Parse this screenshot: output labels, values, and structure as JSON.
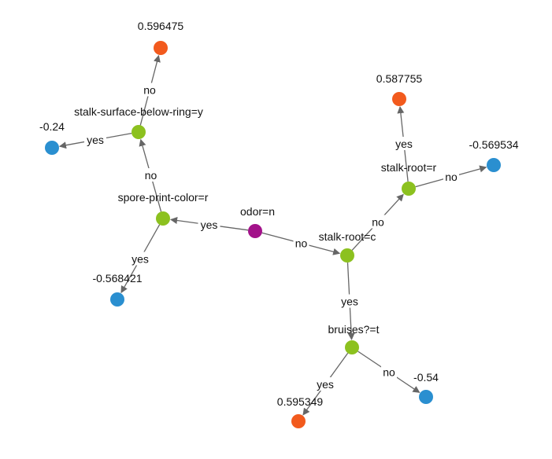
{
  "diagram": {
    "colors": {
      "root": "#a3128a",
      "split": "#8cc11f",
      "leaf_positive": "#f25a1d",
      "leaf_negative": "#2a8fd0",
      "edge": "#666666"
    },
    "nodes": [
      {
        "id": "odor",
        "label": "odor=n",
        "kind": "root"
      },
      {
        "id": "spore",
        "label": "spore-print-color=r",
        "kind": "split"
      },
      {
        "id": "ssbr",
        "label": "stalk-surface-below-ring=y",
        "kind": "split"
      },
      {
        "id": "leaf_596475",
        "label": "0.596475",
        "kind": "leaf_positive"
      },
      {
        "id": "leaf_m024",
        "label": "-0.24",
        "kind": "leaf_negative"
      },
      {
        "id": "leaf_m568421",
        "label": "-0.568421",
        "kind": "leaf_negative"
      },
      {
        "id": "stalkc",
        "label": "stalk-root=c",
        "kind": "split"
      },
      {
        "id": "stalkr",
        "label": "stalk-root=r",
        "kind": "split"
      },
      {
        "id": "leaf_587755",
        "label": "0.587755",
        "kind": "leaf_positive"
      },
      {
        "id": "leaf_m569534",
        "label": "-0.569534",
        "kind": "leaf_negative"
      },
      {
        "id": "bruises",
        "label": "bruises?=t",
        "kind": "split"
      },
      {
        "id": "leaf_595349",
        "label": "0.595349",
        "kind": "leaf_positive"
      },
      {
        "id": "leaf_m054",
        "label": "-0.54",
        "kind": "leaf_negative"
      }
    ],
    "edges": [
      {
        "from": "odor",
        "to": "spore",
        "label": "yes"
      },
      {
        "from": "odor",
        "to": "stalkc",
        "label": "no"
      },
      {
        "from": "spore",
        "to": "ssbr",
        "label": "no"
      },
      {
        "from": "spore",
        "to": "leaf_m568421",
        "label": "yes"
      },
      {
        "from": "ssbr",
        "to": "leaf_596475",
        "label": "no"
      },
      {
        "from": "ssbr",
        "to": "leaf_m024",
        "label": "yes"
      },
      {
        "from": "stalkc",
        "to": "stalkr",
        "label": "no"
      },
      {
        "from": "stalkc",
        "to": "bruises",
        "label": "yes"
      },
      {
        "from": "stalkr",
        "to": "leaf_587755",
        "label": "yes"
      },
      {
        "from": "stalkr",
        "to": "leaf_m569534",
        "label": "no"
      },
      {
        "from": "bruises",
        "to": "leaf_595349",
        "label": "yes"
      },
      {
        "from": "bruises",
        "to": "leaf_m054",
        "label": "no"
      }
    ]
  }
}
